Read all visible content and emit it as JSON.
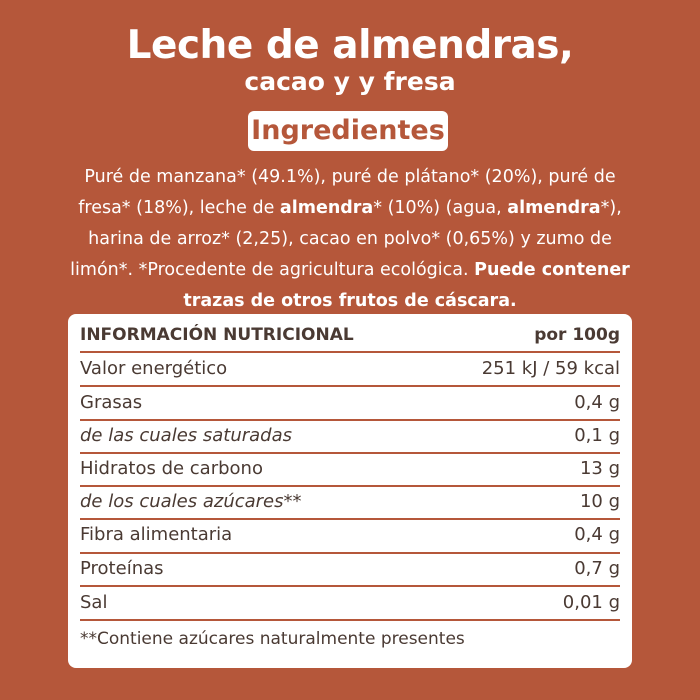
{
  "title": "Leche de almendras,",
  "subtitle": "cacao y y fresa",
  "ingredients_heading": "Ingredientes",
  "ingredients": {
    "p1": "Puré de manzana* (49.1%), puré de plátano* (20%), puré de fresa* (18%), leche de ",
    "b1": "almendra",
    "p2": "* (10%) (agua, ",
    "b2": "almendra",
    "p3": "*), harina de arroz* (2,25), cacao en polvo* (0,65%) y zumo de limón*. *Procedente de agricultura ecológica. ",
    "b3": "Puede contener trazas de otros frutos de cáscara."
  },
  "nutrition": {
    "header_label": "INFORMACIÓN NUTRICIONAL",
    "header_value": "por 100g",
    "rows": [
      {
        "label": "Valor energético",
        "value": "251 kJ / 59 kcal"
      },
      {
        "label": "Grasas",
        "value": "0,4 g"
      },
      {
        "label": "de las cuales saturadas",
        "value": "0,1 g"
      },
      {
        "label": "Hidratos de carbono",
        "value": "13 g"
      },
      {
        "label": "de los cuales azúcares**",
        "value": "10 g"
      },
      {
        "label": "Fibra alimentaria",
        "value": "0,4 g"
      },
      {
        "label": "Proteínas",
        "value": "0,7 g"
      },
      {
        "label": "Sal",
        "value": "0,01 g"
      }
    ],
    "footnote": "**Contiene azúcares naturalmente presentes"
  },
  "colors": {
    "background": "#b5573a",
    "card": "#ffffff",
    "text_dark": "#4a3a33"
  }
}
